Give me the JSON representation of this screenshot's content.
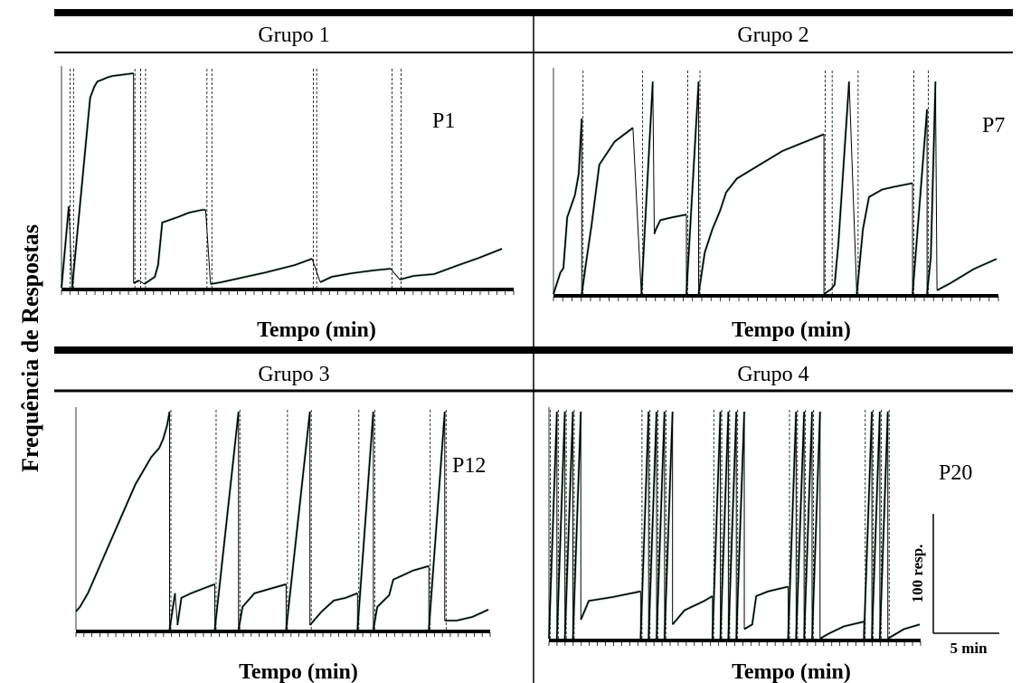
{
  "figure": {
    "y_axis_label": "Frequência de Respostas",
    "scale_bar": {
      "vertical_label": "100 resp.",
      "horizontal_label": "5 min"
    }
  },
  "chart_data": [
    {
      "type": "line",
      "group_title": "Grupo 1",
      "participant": "P1",
      "xlabel": "Tempo (min)",
      "x_tick_count": 54,
      "colors": {
        "trace": "#000000",
        "fill": "#2e8b57"
      },
      "segments": [
        {
          "points": [
            [
              0,
              0
            ],
            [
              0.9,
              90
            ]
          ]
        },
        {
          "points": [
            [
              1.3,
              0
            ],
            [
              3.5,
              210
            ],
            [
              4.0,
              222
            ],
            [
              4.4,
              228
            ],
            [
              5.0,
              230
            ],
            [
              5.5,
              232
            ],
            [
              6.2,
              234
            ],
            [
              8.8,
              237
            ]
          ]
        },
        {
          "points": [
            [
              8.8,
              5
            ],
            [
              9.5,
              8
            ]
          ]
        },
        {
          "points": [
            [
              10.1,
              4
            ],
            [
              11.4,
              12
            ],
            [
              11.8,
              25
            ],
            [
              12.3,
              72
            ],
            [
              14.2,
              78
            ],
            [
              15.6,
              83
            ],
            [
              17.2,
              86
            ],
            [
              17.6,
              86
            ]
          ]
        },
        {
          "points": [
            [
              18.2,
              4
            ],
            [
              19.5,
              6
            ],
            [
              22.0,
              11
            ],
            [
              25.0,
              17
            ],
            [
              28.5,
              25
            ],
            [
              30.6,
              32
            ]
          ]
        },
        {
          "points": [
            [
              31.6,
              6
            ],
            [
              33.0,
              12
            ],
            [
              35.5,
              16
            ],
            [
              38.0,
              19
            ],
            [
              40.2,
              21
            ]
          ]
        },
        {
          "points": [
            [
              41.3,
              9
            ],
            [
              43.0,
              13
            ],
            [
              45.5,
              15
            ],
            [
              48.5,
              25
            ],
            [
              51.0,
              33
            ],
            [
              53.8,
              43
            ]
          ]
        }
      ],
      "dashed_markers": [
        0.9,
        1.3,
        8.8,
        9.5,
        10.1,
        17.6,
        18.2,
        30.6,
        31.0,
        40.2,
        41.3
      ]
    },
    {
      "type": "line",
      "group_title": "Grupo 2",
      "participant": "P7",
      "xlabel": "Tempo (min)",
      "x_tick_count": 48,
      "colors": {
        "trace": "#000000",
        "fill": "#2e8b57"
      },
      "segments": [
        {
          "points": [
            [
              0,
              0
            ],
            [
              0.9,
              23
            ],
            [
              1.3,
              28
            ],
            [
              1.8,
              83
            ],
            [
              2.8,
              107
            ],
            [
              3.3,
              130
            ],
            [
              3.7,
              190
            ]
          ]
        },
        {
          "points": [
            [
              3.7,
              0
            ],
            [
              4.2,
              30
            ],
            [
              5.0,
              75
            ],
            [
              6.0,
              140
            ],
            [
              8.0,
              165
            ],
            [
              10.4,
              180
            ]
          ]
        },
        {
          "points": [
            [
              11.5,
              0
            ],
            [
              13.0,
              230
            ]
          ]
        },
        {
          "points": [
            [
              13.2,
              65
            ],
            [
              13.4,
              70
            ],
            [
              14.0,
              80
            ],
            [
              15.5,
              83
            ],
            [
              17.4,
              86
            ]
          ]
        },
        {
          "points": [
            [
              17.4,
              0
            ],
            [
              19.0,
              230
            ]
          ]
        },
        {
          "points": [
            [
              19.0,
              0
            ],
            [
              19.8,
              45
            ],
            [
              20.8,
              70
            ],
            [
              21.8,
              90
            ],
            [
              22.6,
              110
            ],
            [
              24.0,
              125
            ],
            [
              27.0,
              140
            ],
            [
              30.0,
              155
            ],
            [
              33.0,
              165
            ],
            [
              35.4,
              173
            ]
          ]
        },
        {
          "points": [
            [
              35.4,
              0
            ],
            [
              36.3,
              5
            ],
            [
              36.8,
              10
            ],
            [
              37.3,
              55
            ],
            [
              38.7,
              230
            ]
          ]
        },
        {
          "points": [
            [
              39.7,
              0
            ],
            [
              40.5,
              70
            ],
            [
              41.3,
              105
            ],
            [
              43.0,
              113
            ],
            [
              44.5,
              116
            ],
            [
              47.0,
              120
            ]
          ]
        },
        {
          "points": [
            [
              47.0,
              0
            ],
            [
              48.9,
              200
            ]
          ]
        },
        {
          "points": [
            [
              48.9,
              0
            ],
            [
              49.4,
              40
            ],
            [
              50.0,
              230
            ]
          ]
        },
        {
          "points": [
            [
              50.2,
              4
            ],
            [
              52.0,
              12
            ],
            [
              55.0,
              27
            ],
            [
              58.0,
              38
            ]
          ]
        }
      ],
      "dashed_markers": [
        3.7,
        11.5,
        17.4,
        19.0,
        35.4,
        36.3,
        39.7,
        47.0,
        48.9
      ]
    },
    {
      "type": "line",
      "group_title": "Grupo 3",
      "participant": "P12",
      "xlabel": "Tempo (min)",
      "x_tick_count": 52,
      "colors": {
        "trace": "#000000",
        "fill": "#2e8b57"
      },
      "segments": [
        {
          "points": [
            [
              0,
              20
            ],
            [
              0.5,
              25
            ],
            [
              1.5,
              40
            ],
            [
              3.5,
              80
            ],
            [
              5.5,
              120
            ],
            [
              7.5,
              160
            ],
            [
              9.5,
              190
            ],
            [
              10.5,
              200
            ],
            [
              11.0,
              210
            ],
            [
              11.5,
              225
            ],
            [
              11.8,
              240
            ]
          ]
        },
        {
          "points": [
            [
              11.8,
              0
            ],
            [
              12.5,
              40
            ]
          ]
        },
        {
          "points": [
            [
              12.8,
              5
            ],
            [
              13.3,
              35
            ],
            [
              14.5,
              40
            ],
            [
              16.0,
              45
            ],
            [
              17.5,
              50
            ]
          ]
        },
        {
          "points": [
            [
              17.5,
              0
            ],
            [
              20.5,
              240
            ]
          ]
        },
        {
          "points": [
            [
              20.5,
              0
            ],
            [
              21.0,
              25
            ],
            [
              22.5,
              40
            ],
            [
              24.5,
              45
            ],
            [
              26.5,
              50
            ]
          ]
        },
        {
          "points": [
            [
              26.5,
              0
            ],
            [
              29.5,
              240
            ]
          ]
        },
        {
          "points": [
            [
              29.5,
              5
            ],
            [
              31.0,
              20
            ],
            [
              32.5,
              32
            ],
            [
              34.0,
              35
            ],
            [
              35.5,
              40
            ]
          ]
        },
        {
          "points": [
            [
              35.5,
              0
            ],
            [
              37.5,
              240
            ]
          ]
        },
        {
          "points": [
            [
              37.5,
              0
            ],
            [
              38.0,
              25
            ],
            [
              39.5,
              38
            ],
            [
              40.0,
              55
            ],
            [
              42.5,
              65
            ],
            [
              44.5,
              70
            ]
          ]
        },
        {
          "points": [
            [
              44.5,
              0
            ],
            [
              46.5,
              240
            ]
          ]
        },
        {
          "points": [
            [
              46.5,
              10
            ],
            [
              48.0,
              10
            ],
            [
              50.0,
              14
            ],
            [
              52.0,
              22
            ]
          ]
        }
      ],
      "dashed_markers": [
        11.8,
        17.5,
        20.5,
        26.5,
        29.5,
        35.5,
        37.5,
        44.5,
        46.5
      ]
    },
    {
      "type": "line",
      "group_title": "Grupo 4",
      "participant": "P20",
      "xlabel": "Tempo (min)",
      "x_tick_count": 46,
      "colors": {
        "trace": "#000000",
        "fill": "#2e8b57"
      },
      "segments": [
        {
          "points": [
            [
              0,
              0
            ],
            [
              1.0,
              240
            ]
          ]
        },
        {
          "points": [
            [
              1.0,
              0
            ],
            [
              2.0,
              240
            ]
          ]
        },
        {
          "points": [
            [
              2.0,
              0
            ],
            [
              3.0,
              240
            ]
          ]
        },
        {
          "points": [
            [
              3.0,
              0
            ],
            [
              4.0,
              240
            ]
          ]
        },
        {
          "points": [
            [
              4.0,
              20
            ],
            [
              5.0,
              40
            ],
            [
              8.0,
              44
            ],
            [
              11.5,
              50
            ]
          ]
        },
        {
          "points": [
            [
              11.5,
              0
            ],
            [
              12.5,
              240
            ]
          ]
        },
        {
          "points": [
            [
              12.5,
              0
            ],
            [
              13.5,
              240
            ]
          ]
        },
        {
          "points": [
            [
              13.5,
              0
            ],
            [
              14.5,
              240
            ]
          ]
        },
        {
          "points": [
            [
              14.5,
              0
            ],
            [
              15.5,
              240
            ]
          ]
        },
        {
          "points": [
            [
              15.5,
              15
            ],
            [
              17.0,
              30
            ],
            [
              19.5,
              40
            ],
            [
              20.5,
              45
            ]
          ]
        },
        {
          "points": [
            [
              20.5,
              0
            ],
            [
              21.5,
              240
            ]
          ]
        },
        {
          "points": [
            [
              21.5,
              0
            ],
            [
              22.5,
              240
            ]
          ]
        },
        {
          "points": [
            [
              22.5,
              0
            ],
            [
              23.5,
              240
            ]
          ]
        },
        {
          "points": [
            [
              23.5,
              0
            ],
            [
              24.5,
              240
            ]
          ]
        },
        {
          "points": [
            [
              24.5,
              10
            ],
            [
              25.5,
              15
            ],
            [
              26.0,
              45
            ],
            [
              27.5,
              50
            ],
            [
              30.0,
              55
            ]
          ]
        },
        {
          "points": [
            [
              30.0,
              0
            ],
            [
              31.0,
              240
            ]
          ]
        },
        {
          "points": [
            [
              31.0,
              0
            ],
            [
              32.0,
              240
            ]
          ]
        },
        {
          "points": [
            [
              32.0,
              0
            ],
            [
              33.0,
              240
            ]
          ]
        },
        {
          "points": [
            [
              33.0,
              0
            ],
            [
              34.0,
              240
            ]
          ]
        },
        {
          "points": [
            [
              34.0,
              0
            ],
            [
              35.0,
              5
            ],
            [
              37.0,
              13
            ],
            [
              39.5,
              18
            ]
          ]
        },
        {
          "points": [
            [
              39.5,
              0
            ],
            [
              40.5,
              240
            ]
          ]
        },
        {
          "points": [
            [
              40.5,
              0
            ],
            [
              41.5,
              240
            ]
          ]
        },
        {
          "points": [
            [
              41.5,
              0
            ],
            [
              42.5,
              240
            ]
          ]
        },
        {
          "points": [
            [
              42.5,
              0
            ],
            [
              44.5,
              10
            ],
            [
              46.5,
              15
            ]
          ]
        }
      ],
      "dashed_markers": [
        0,
        1.0,
        2.0,
        3.0,
        11.5,
        12.5,
        13.5,
        14.5,
        20.5,
        21.5,
        22.5,
        23.5,
        30.0,
        31.0,
        32.0,
        33.0,
        39.5,
        40.5,
        41.5,
        42.5
      ]
    }
  ]
}
